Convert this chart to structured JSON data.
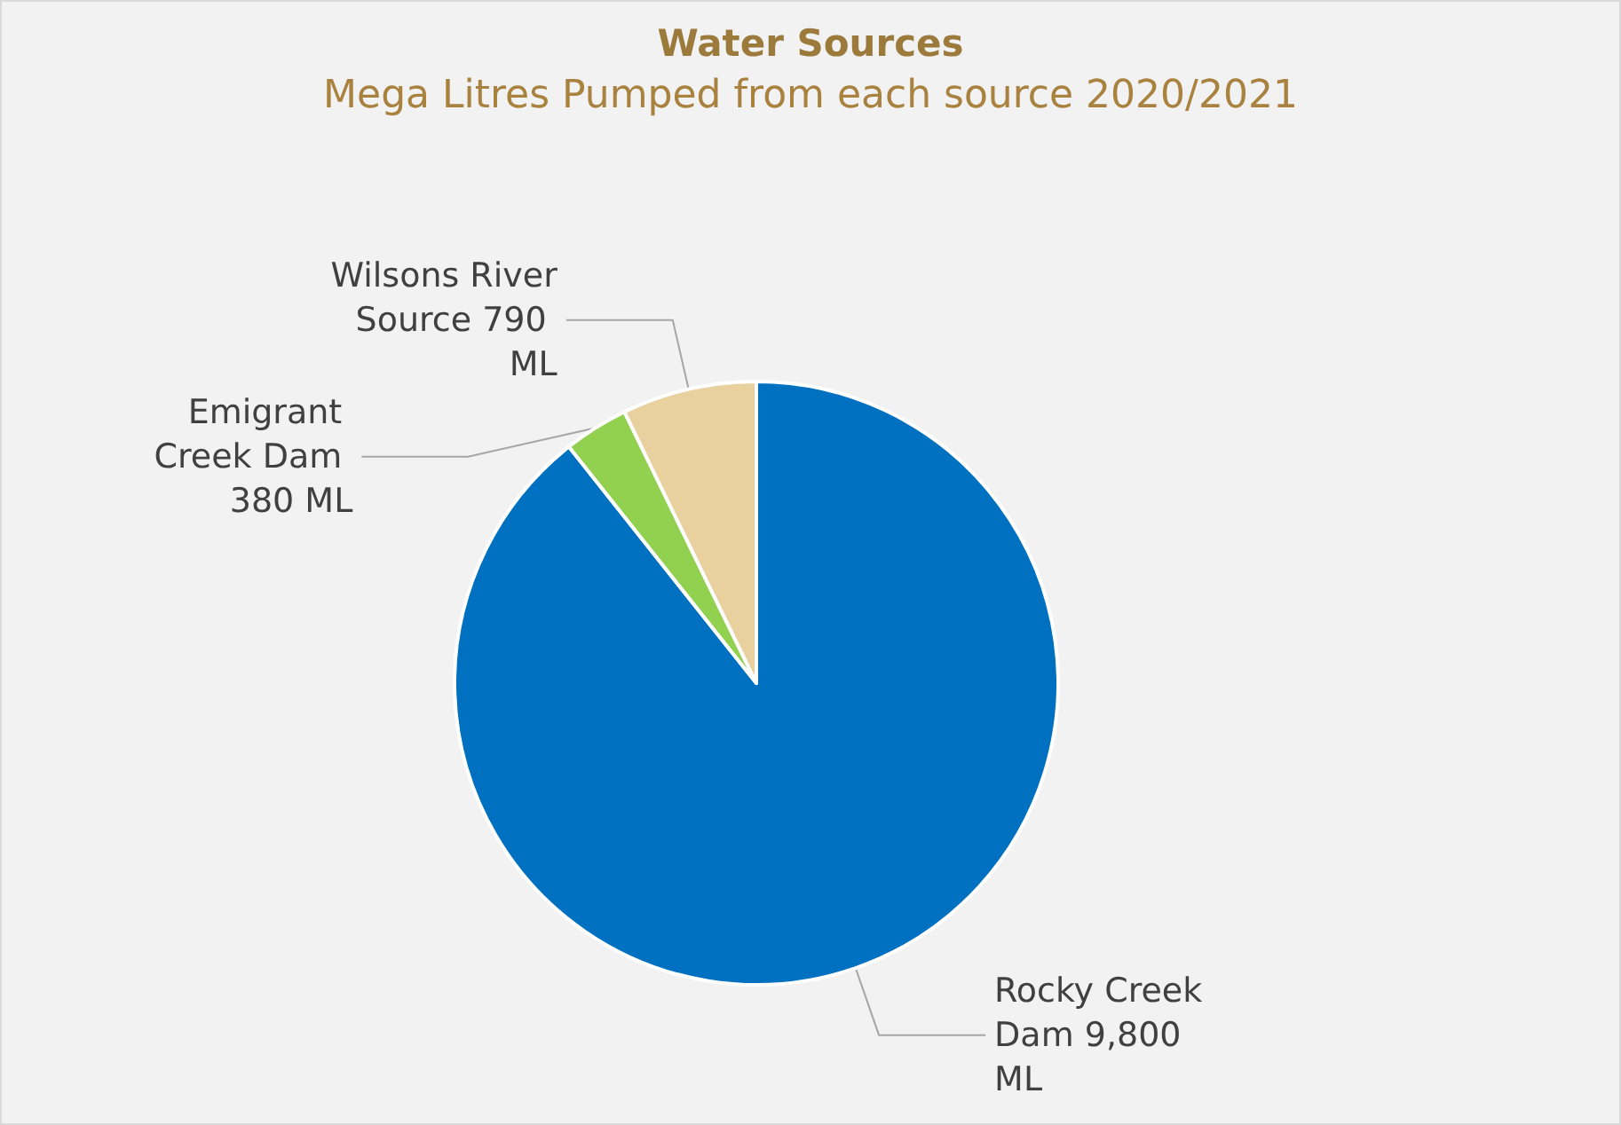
{
  "chart_data": {
    "type": "pie",
    "title": "Water Sources",
    "subtitle": "Mega Litres Pumped from each source 2020/2021",
    "categories": [
      "Rocky Creek Dam",
      "Emigrant Creek Dam",
      "Wilsons River Source"
    ],
    "values": [
      9800,
      380,
      790
    ],
    "value_labels": [
      "9,800 ML",
      "380 ML",
      "790 ML"
    ],
    "colors": [
      "#0070c0",
      "#92d050",
      "#e8d09f"
    ],
    "legend": false
  }
}
